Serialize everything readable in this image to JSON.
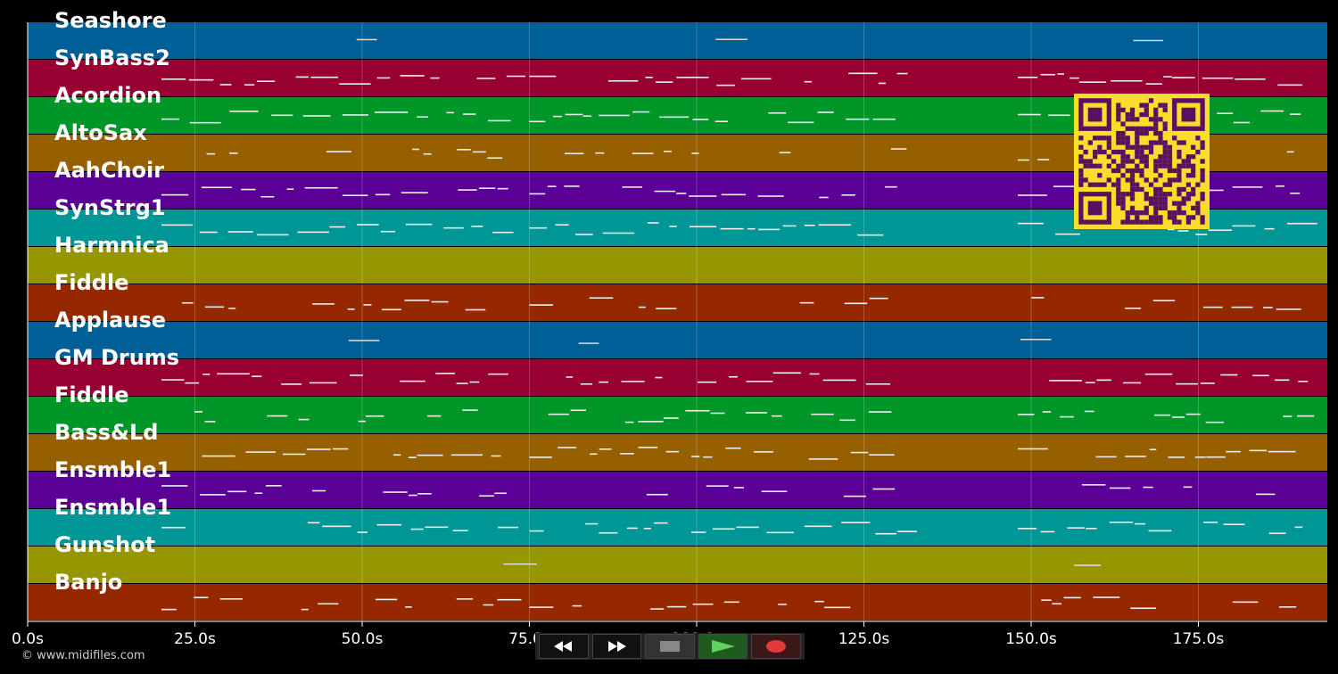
{
  "tracks": [
    {
      "name": "Seashore",
      "color": "#005f96"
    },
    {
      "name": "SynBass2",
      "color": "#980032"
    },
    {
      "name": "Acordion",
      "color": "#009628"
    },
    {
      "name": "AltoSax",
      "color": "#965f00"
    },
    {
      "name": "AahChoir",
      "color": "#5a0096"
    },
    {
      "name": "SynStrg1",
      "color": "#009696"
    },
    {
      "name": "Harmnica",
      "color": "#969600"
    },
    {
      "name": "Fiddle",
      "color": "#962800"
    },
    {
      "name": "Applause",
      "color": "#005f96"
    },
    {
      "name": "GM Drums",
      "color": "#980032"
    },
    {
      "name": "Fiddle",
      "color": "#009628"
    },
    {
      "name": "Bass&Ld",
      "color": "#965f00"
    },
    {
      "name": "Ensmble1",
      "color": "#5a0096"
    },
    {
      "name": "Ensmble1",
      "color": "#009696"
    },
    {
      "name": "Gunshot",
      "color": "#969600"
    },
    {
      "name": "Banjo",
      "color": "#962800"
    }
  ],
  "time_axis": {
    "ticks": [
      "0.0s",
      "25.0s",
      "50.0s",
      "75.0s",
      "100.0s",
      "125.0s",
      "150.0s",
      "175.0s"
    ]
  },
  "credit": "© www.midifiles.com",
  "transport": {
    "rewind_icon": "rewind-icon",
    "forward_icon": "fast-forward-icon",
    "stop_icon": "stop-icon",
    "play_icon": "play-icon",
    "record_icon": "record-icon"
  },
  "qr_icon": "qr-code-icon"
}
